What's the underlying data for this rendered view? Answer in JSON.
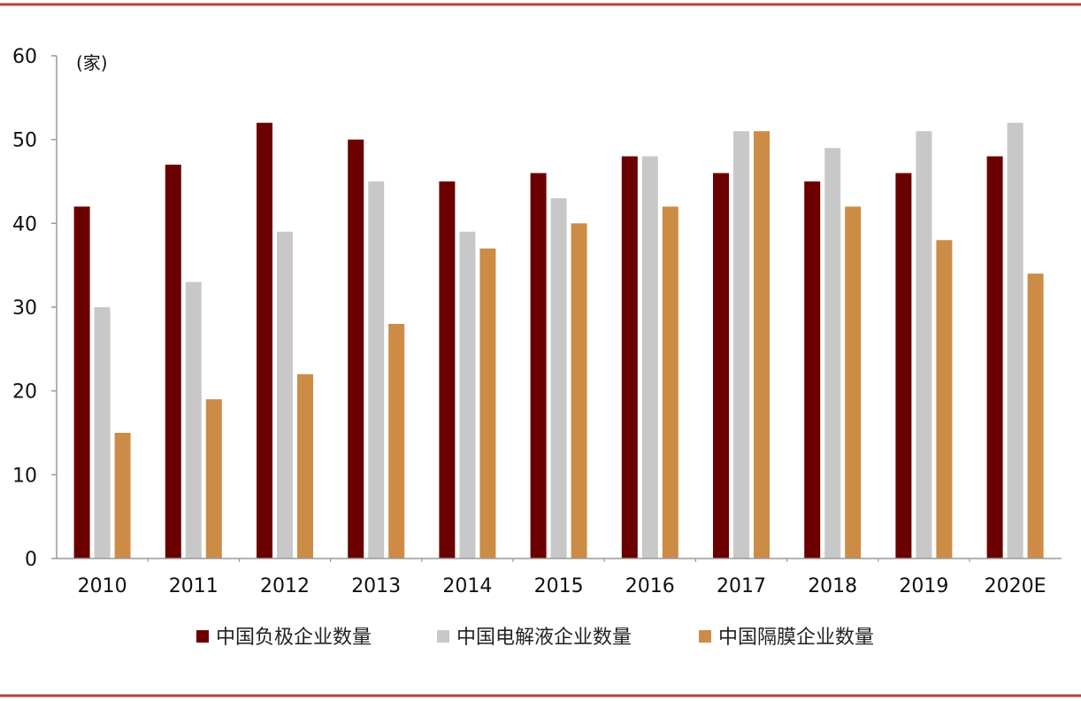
{
  "chart_data": {
    "type": "bar",
    "title": "",
    "xlabel": "",
    "ylabel": "",
    "unit_label": "(家)",
    "categories": [
      "2010",
      "2011",
      "2012",
      "2013",
      "2014",
      "2015",
      "2016",
      "2017",
      "2018",
      "2019",
      "2020E"
    ],
    "ylim": [
      0,
      60
    ],
    "yticks": [
      0,
      10,
      20,
      30,
      40,
      50,
      60
    ],
    "grid": false,
    "legend_position": "bottom",
    "series": [
      {
        "name": "中国负极企业数量",
        "color": "#6b0000",
        "values": [
          42,
          47,
          52,
          50,
          45,
          46,
          48,
          46,
          45,
          46,
          48
        ]
      },
      {
        "name": "中国电解液企业数量",
        "color": "#c8c8c8",
        "values": [
          30,
          33,
          39,
          45,
          39,
          43,
          48,
          51,
          49,
          51,
          52
        ]
      },
      {
        "name": "中国隔膜企业数量",
        "color": "#cc8c46",
        "values": [
          15,
          19,
          22,
          28,
          37,
          40,
          42,
          51,
          42,
          38,
          34
        ]
      }
    ],
    "frame_color": "#b8413a"
  }
}
